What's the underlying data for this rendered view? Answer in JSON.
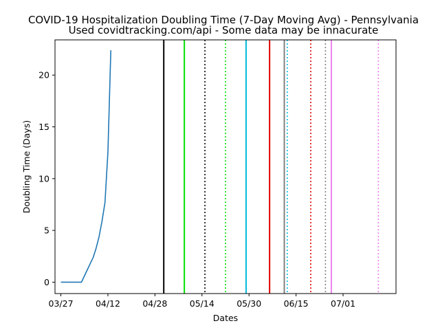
{
  "chart_data": {
    "type": "line",
    "title": "COVID-19 Hospitalization Doubling Time (7-Day Moving Avg) - Pennsylvania",
    "subtitle": "Used covidtracking.com/api - Some data may be innacurate",
    "xlabel": "Dates",
    "ylabel": "Doubling Time (Days)",
    "year": 2020,
    "xlim": [
      "2020-03-25",
      "2020-07-19"
    ],
    "ylim": [
      -1.1,
      23.4
    ],
    "x_tick_labels": [
      "03/27",
      "04/12",
      "04/28",
      "05/14",
      "05/30",
      "06/15",
      "07/01"
    ],
    "x_ticks": [
      "2020-03-27",
      "2020-04-12",
      "2020-04-28",
      "2020-05-14",
      "2020-05-30",
      "2020-06-15",
      "2020-07-01"
    ],
    "y_ticks": [
      0,
      5,
      10,
      15,
      20
    ],
    "grid": false,
    "legend": "none",
    "series": [
      {
        "color": "#1f77b4",
        "x": [
          "2020-03-27",
          "2020-04-03",
          "2020-04-04",
          "2020-04-05",
          "2020-04-06",
          "2020-04-07",
          "2020-04-08",
          "2020-04-09",
          "2020-04-10",
          "2020-04-11",
          "2020-04-12",
          "2020-04-13"
        ],
        "values": [
          0,
          0,
          0.6,
          1.2,
          1.8,
          2.4,
          3.3,
          4.4,
          5.9,
          7.7,
          12.6,
          22.4
        ]
      }
    ],
    "vertical_lines": [
      {
        "date": "2020-05-01",
        "color": "#000000",
        "style": "solid"
      },
      {
        "date": "2020-05-08",
        "color": "#00e000",
        "style": "solid"
      },
      {
        "date": "2020-05-15",
        "color": "#000000",
        "style": "dotted"
      },
      {
        "date": "2020-05-22",
        "color": "#00e000",
        "style": "dotted"
      },
      {
        "date": "2020-05-29",
        "color": "#00bcd8",
        "style": "solid"
      },
      {
        "date": "2020-06-06",
        "color": "#e00000",
        "style": "solid"
      },
      {
        "date": "2020-06-11",
        "color": "#808080",
        "style": "solid"
      },
      {
        "date": "2020-06-12",
        "color": "#00bcd8",
        "style": "dotted"
      },
      {
        "date": "2020-06-20",
        "color": "#e00000",
        "style": "dotted"
      },
      {
        "date": "2020-06-25",
        "color": "#808080",
        "style": "dotted"
      },
      {
        "date": "2020-06-27",
        "color": "#ee82ee",
        "style": "solid"
      },
      {
        "date": "2020-07-13",
        "color": "#ee82ee",
        "style": "dotted"
      }
    ]
  }
}
